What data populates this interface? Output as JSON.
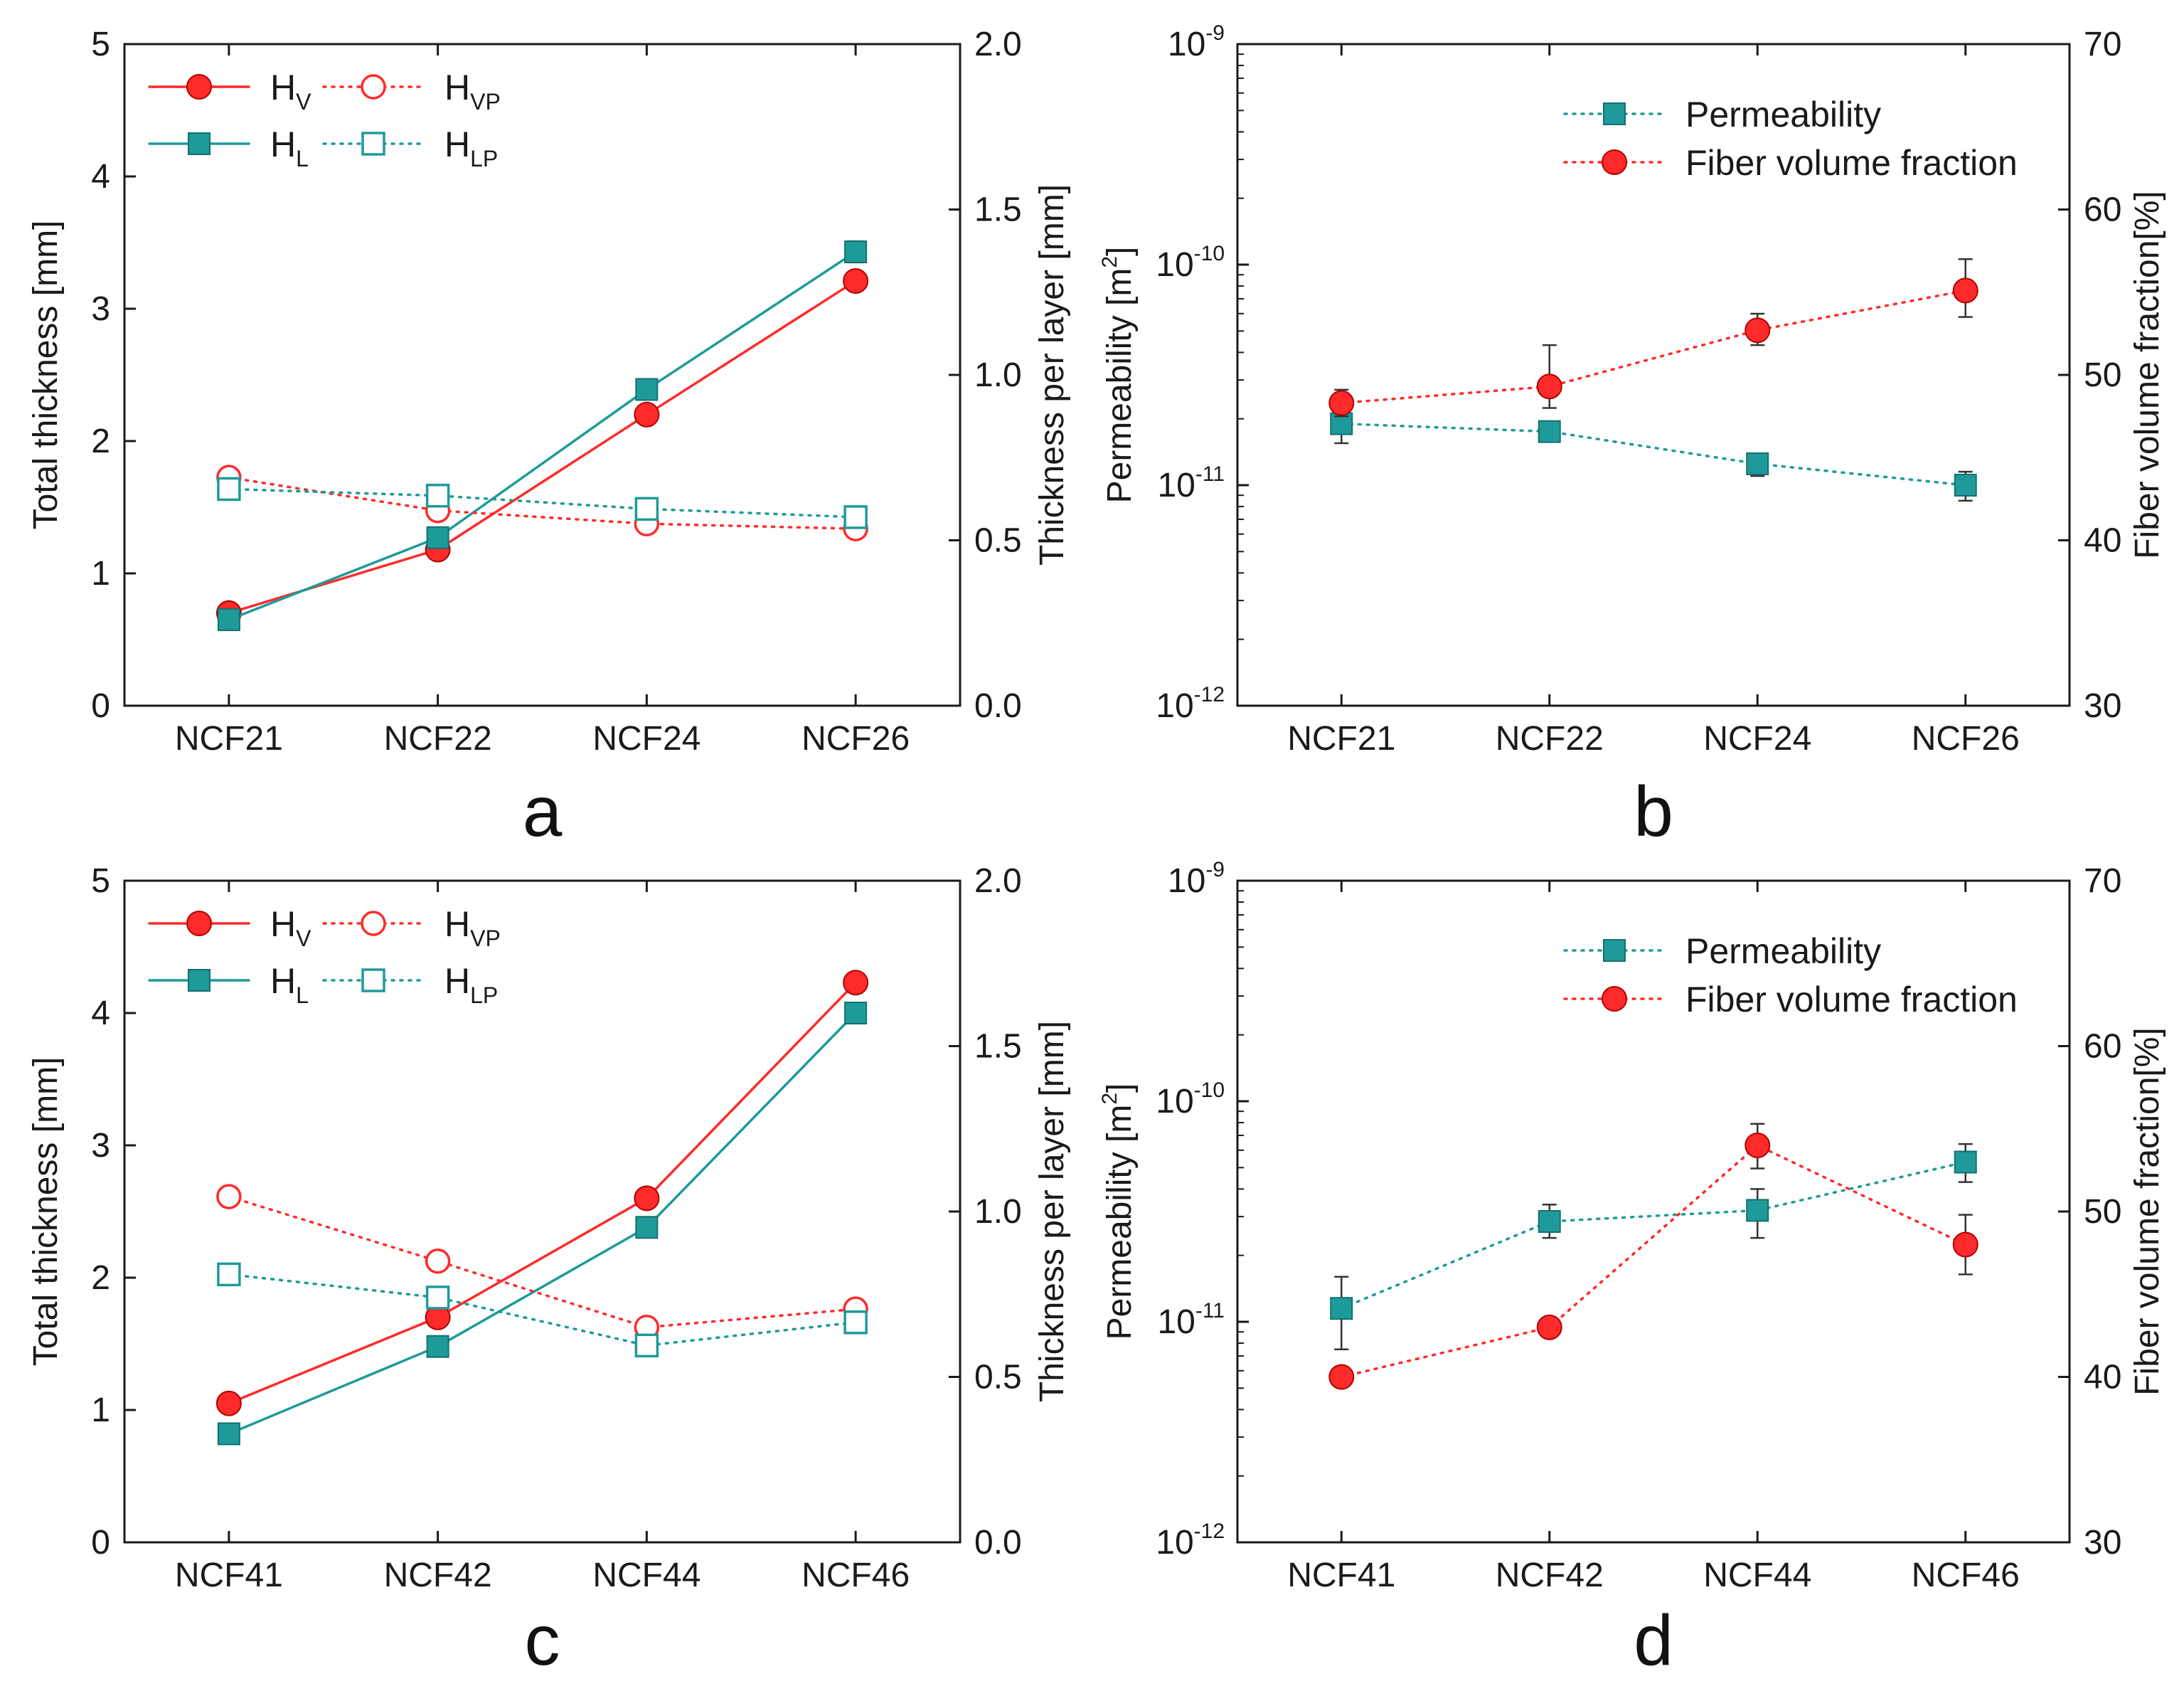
{
  "colors": {
    "red": "#ff2a2a",
    "teal": "#1e9a9a",
    "axis": "#1a1a1a",
    "errbar": "#333333"
  },
  "chart_data": [
    {
      "type": "line",
      "panel": "a",
      "categories": [
        "NCF21",
        "NCF22",
        "NCF24",
        "NCF26"
      ],
      "left_axis": {
        "label": "Total thickness [mm]",
        "ylim": [
          0,
          5
        ],
        "ticks": [
          "0",
          "1",
          "2",
          "3",
          "4",
          "5"
        ]
      },
      "right_axis": {
        "label": "Thickness per layer [mm]",
        "ylim": [
          0,
          2
        ],
        "ticks": [
          "0.0",
          "0.5",
          "1.0",
          "1.5",
          "2.0"
        ]
      },
      "legend": [
        {
          "base": "H",
          "sub": "V"
        },
        {
          "base": "H",
          "sub": "VP"
        },
        {
          "base": "H",
          "sub": "L"
        },
        {
          "base": "H",
          "sub": "LP"
        }
      ],
      "series": [
        {
          "name": "HV",
          "axis": "left",
          "style": "solid",
          "marker": "circle-filled",
          "color": "red",
          "values": [
            0.7,
            1.18,
            2.2,
            3.21
          ],
          "err": [
            0.03,
            0.04,
            0.05,
            0.05
          ]
        },
        {
          "name": "HL",
          "axis": "left",
          "style": "solid",
          "marker": "square-filled",
          "color": "teal",
          "values": [
            0.65,
            1.27,
            2.39,
            3.43
          ],
          "err": [
            0.03,
            0.05,
            0.05,
            0.08
          ]
        },
        {
          "name": "HVP",
          "axis": "right",
          "style": "dotted",
          "marker": "circle-open",
          "color": "red",
          "values": [
            0.69,
            0.59,
            0.55,
            0.535
          ],
          "err": [
            0.02,
            0.02,
            0.02,
            0.02
          ]
        },
        {
          "name": "HLP",
          "axis": "right",
          "style": "dotted",
          "marker": "square-open",
          "color": "teal",
          "values": [
            0.655,
            0.635,
            0.595,
            0.57
          ],
          "err": [
            0.02,
            0.03,
            0.03,
            0.02
          ]
        }
      ]
    },
    {
      "type": "scatter",
      "panel": "b",
      "categories": [
        "NCF21",
        "NCF22",
        "NCF24",
        "NCF26"
      ],
      "left_axis": {
        "label": "Permeability [m",
        "label_sup": "2",
        "label_end": "]",
        "scale": "log",
        "ylim": [
          1e-12,
          1e-09
        ],
        "ticks": [
          {
            "base": "10",
            "exp": "-12"
          },
          {
            "base": "10",
            "exp": "-11"
          },
          {
            "base": "10",
            "exp": "-10"
          },
          {
            "base": "10",
            "exp": "-9"
          }
        ]
      },
      "right_axis": {
        "label": "Fiber volume fraction[%]",
        "ylim": [
          30,
          70
        ],
        "ticks": [
          "30",
          "40",
          "50",
          "60",
          "70"
        ]
      },
      "legend": [
        "Permeability",
        "Fiber volume fraction"
      ],
      "series": [
        {
          "name": "Permeability",
          "axis": "left",
          "style": "dotted",
          "marker": "square-filled",
          "color": "teal",
          "values": [
            1.9e-11,
            1.75e-11,
            1.25e-11,
            1e-11
          ],
          "err_lo": [
            1.55e-11,
            1.6e-11,
            1.1e-11,
            8.5e-12
          ],
          "err_hi": [
            2.15e-11,
            1.85e-11,
            1.35e-11,
            1.15e-11
          ]
        },
        {
          "name": "Fiber volume fraction",
          "axis": "right",
          "style": "dotted",
          "marker": "circle-filled",
          "color": "red",
          "values": [
            48.3,
            49.3,
            52.7,
            55.1
          ],
          "err_lo": [
            47.5,
            48.0,
            51.8,
            53.5
          ],
          "err_hi": [
            49.1,
            51.8,
            53.7,
            57.0
          ]
        }
      ]
    },
    {
      "type": "line",
      "panel": "c",
      "categories": [
        "NCF41",
        "NCF42",
        "NCF44",
        "NCF46"
      ],
      "left_axis": {
        "label": "Total thickness [mm]",
        "ylim": [
          0,
          5
        ],
        "ticks": [
          "0",
          "1",
          "2",
          "3",
          "4",
          "5"
        ]
      },
      "right_axis": {
        "label": "Thickness per layer [mm]",
        "ylim": [
          0,
          2
        ],
        "ticks": [
          "0.0",
          "0.5",
          "1.0",
          "1.5",
          "2.0"
        ]
      },
      "legend": [
        {
          "base": "H",
          "sub": "V"
        },
        {
          "base": "H",
          "sub": "VP"
        },
        {
          "base": "H",
          "sub": "L"
        },
        {
          "base": "H",
          "sub": "LP"
        }
      ],
      "series": [
        {
          "name": "HV",
          "axis": "left",
          "style": "solid",
          "marker": "circle-filled",
          "color": "red",
          "values": [
            1.05,
            1.7,
            2.6,
            4.23
          ],
          "err": [
            0.04,
            0.05,
            0.05,
            0.04
          ]
        },
        {
          "name": "HL",
          "axis": "left",
          "style": "solid",
          "marker": "square-filled",
          "color": "teal",
          "values": [
            0.82,
            1.48,
            2.38,
            4.0
          ],
          "err": [
            0.04,
            0.04,
            0.05,
            0.05
          ]
        },
        {
          "name": "HVP",
          "axis": "right",
          "style": "dotted",
          "marker": "circle-open",
          "color": "red",
          "values": [
            1.045,
            0.85,
            0.65,
            0.705
          ],
          "err": [
            0.02,
            0.02,
            0.02,
            0.02
          ]
        },
        {
          "name": "HLP",
          "axis": "right",
          "style": "dotted",
          "marker": "square-open",
          "color": "teal",
          "values": [
            0.81,
            0.74,
            0.595,
            0.665
          ],
          "err": [
            0.02,
            0.02,
            0.02,
            0.02
          ]
        }
      ]
    },
    {
      "type": "scatter",
      "panel": "d",
      "categories": [
        "NCF41",
        "NCF42",
        "NCF44",
        "NCF46"
      ],
      "left_axis": {
        "label": "Permeability [m",
        "label_sup": "2",
        "label_end": "]",
        "scale": "log",
        "ylim": [
          1e-12,
          1e-09
        ],
        "ticks": [
          {
            "base": "10",
            "exp": "-12"
          },
          {
            "base": "10",
            "exp": "-11"
          },
          {
            "base": "10",
            "exp": "-10"
          },
          {
            "base": "10",
            "exp": "-9"
          }
        ]
      },
      "right_axis": {
        "label": "Fiber volume fraction[%]",
        "ylim": [
          30,
          70
        ],
        "ticks": [
          "30",
          "40",
          "50",
          "60",
          "70"
        ]
      },
      "legend": [
        "Permeability",
        "Fiber volume fraction"
      ],
      "series": [
        {
          "name": "Permeability",
          "axis": "left",
          "style": "dotted",
          "marker": "square-filled",
          "color": "teal",
          "values": [
            1.15e-11,
            2.85e-11,
            3.2e-11,
            5.3e-11
          ],
          "err_lo": [
            7.5e-12,
            2.4e-11,
            2.4e-11,
            4.3e-11
          ],
          "err_hi": [
            1.6e-11,
            3.4e-11,
            4e-11,
            6.4e-11
          ]
        },
        {
          "name": "Fiber volume fraction",
          "axis": "right",
          "style": "dotted",
          "marker": "circle-filled",
          "color": "red",
          "values": [
            40.0,
            43.0,
            54.0,
            48.0
          ],
          "err_lo": [
            39.6,
            42.6,
            52.6,
            46.2
          ],
          "err_hi": [
            40.4,
            43.4,
            55.3,
            49.8
          ]
        }
      ]
    }
  ]
}
